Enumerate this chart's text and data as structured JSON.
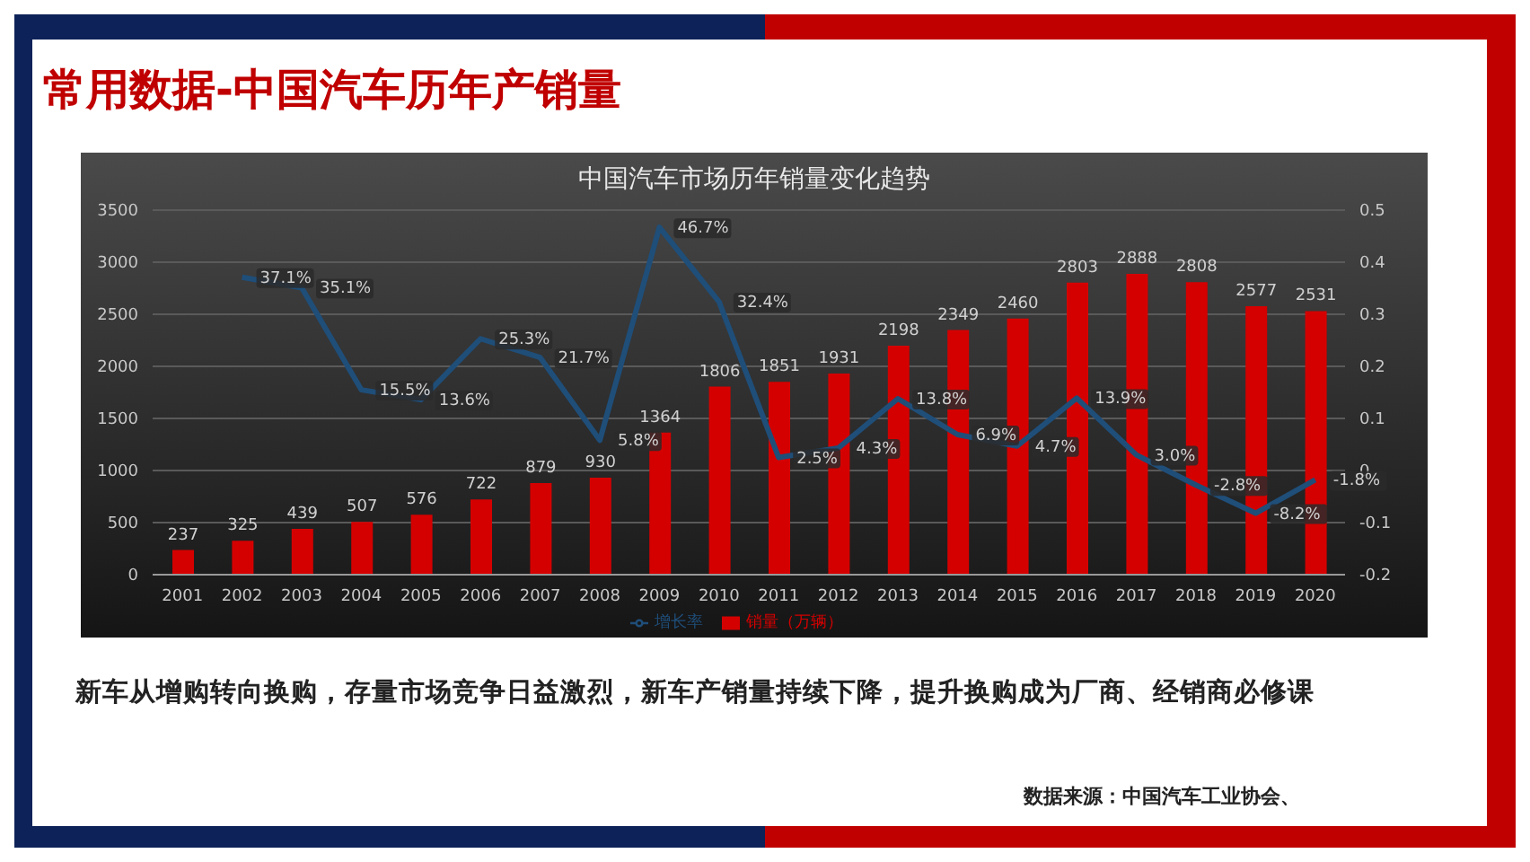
{
  "chart_data": {
    "type": "bar",
    "title": "常用数据-中国汽车历年产销量",
    "subtitle": "中国汽车市场历年销量变化趋势",
    "categories": [
      "2001",
      "2002",
      "2003",
      "2004",
      "2005",
      "2006",
      "2007",
      "2008",
      "2009",
      "2010",
      "2011",
      "2012",
      "2013",
      "2014",
      "2015",
      "2016",
      "2017",
      "2018",
      "2019",
      "2020"
    ],
    "series": [
      {
        "name": "销量（万辆）",
        "color": "#d40000",
        "values": [
          237,
          325,
          439,
          507,
          576,
          722,
          879,
          930,
          1364,
          1806,
          1851,
          1931,
          2198,
          2349,
          2460,
          2803,
          2888,
          2808,
          2577,
          2531
        ],
        "value_labels": [
          "237",
          "325",
          "439",
          "507",
          "576",
          "722",
          "879",
          "930",
          "1364",
          "1806",
          "1851",
          "1931",
          "2198",
          "2349",
          "2460",
          "2803",
          "2888",
          "2808",
          "2577",
          "2531"
        ]
      },
      {
        "name": "增长率",
        "type": "line",
        "axis": "y2",
        "color": "#1f4e79",
        "marker": "none",
        "values": [
          null,
          0.371,
          0.351,
          0.155,
          0.136,
          0.253,
          0.217,
          0.058,
          0.467,
          0.324,
          0.025,
          0.043,
          0.138,
          0.069,
          0.047,
          0.139,
          0.03,
          -0.028,
          -0.082,
          -0.018
        ],
        "value_labels": [
          null,
          "37.1%",
          "35.1%",
          "15.5%",
          "13.6%",
          "25.3%",
          "21.7%",
          "5.8%",
          "46.7%",
          "32.4%",
          "2.5%",
          "4.3%",
          "13.8%",
          "6.9%",
          "4.7%",
          "13.9%",
          "3.0%",
          "-2.8%",
          "-8.2%",
          "-1.8%"
        ]
      }
    ],
    "ylim": [
      0,
      3500
    ],
    "yticks": [
      0,
      500,
      1000,
      1500,
      2000,
      2500,
      3000,
      3500
    ],
    "y2lim": [
      -0.2,
      0.5
    ],
    "y2ticks": [
      -0.2,
      -0.1,
      0,
      0.1,
      0.2,
      0.3,
      0.4,
      0.5
    ],
    "grid": "y",
    "legend": "bottom",
    "annotations": [
      "新车从增购转向换购，存量市场竞争日益激烈，新车产销量持续下降，提升换购成为厂商、经销商必修课",
      "数据来源：中国汽车工业协会、"
    ]
  }
}
